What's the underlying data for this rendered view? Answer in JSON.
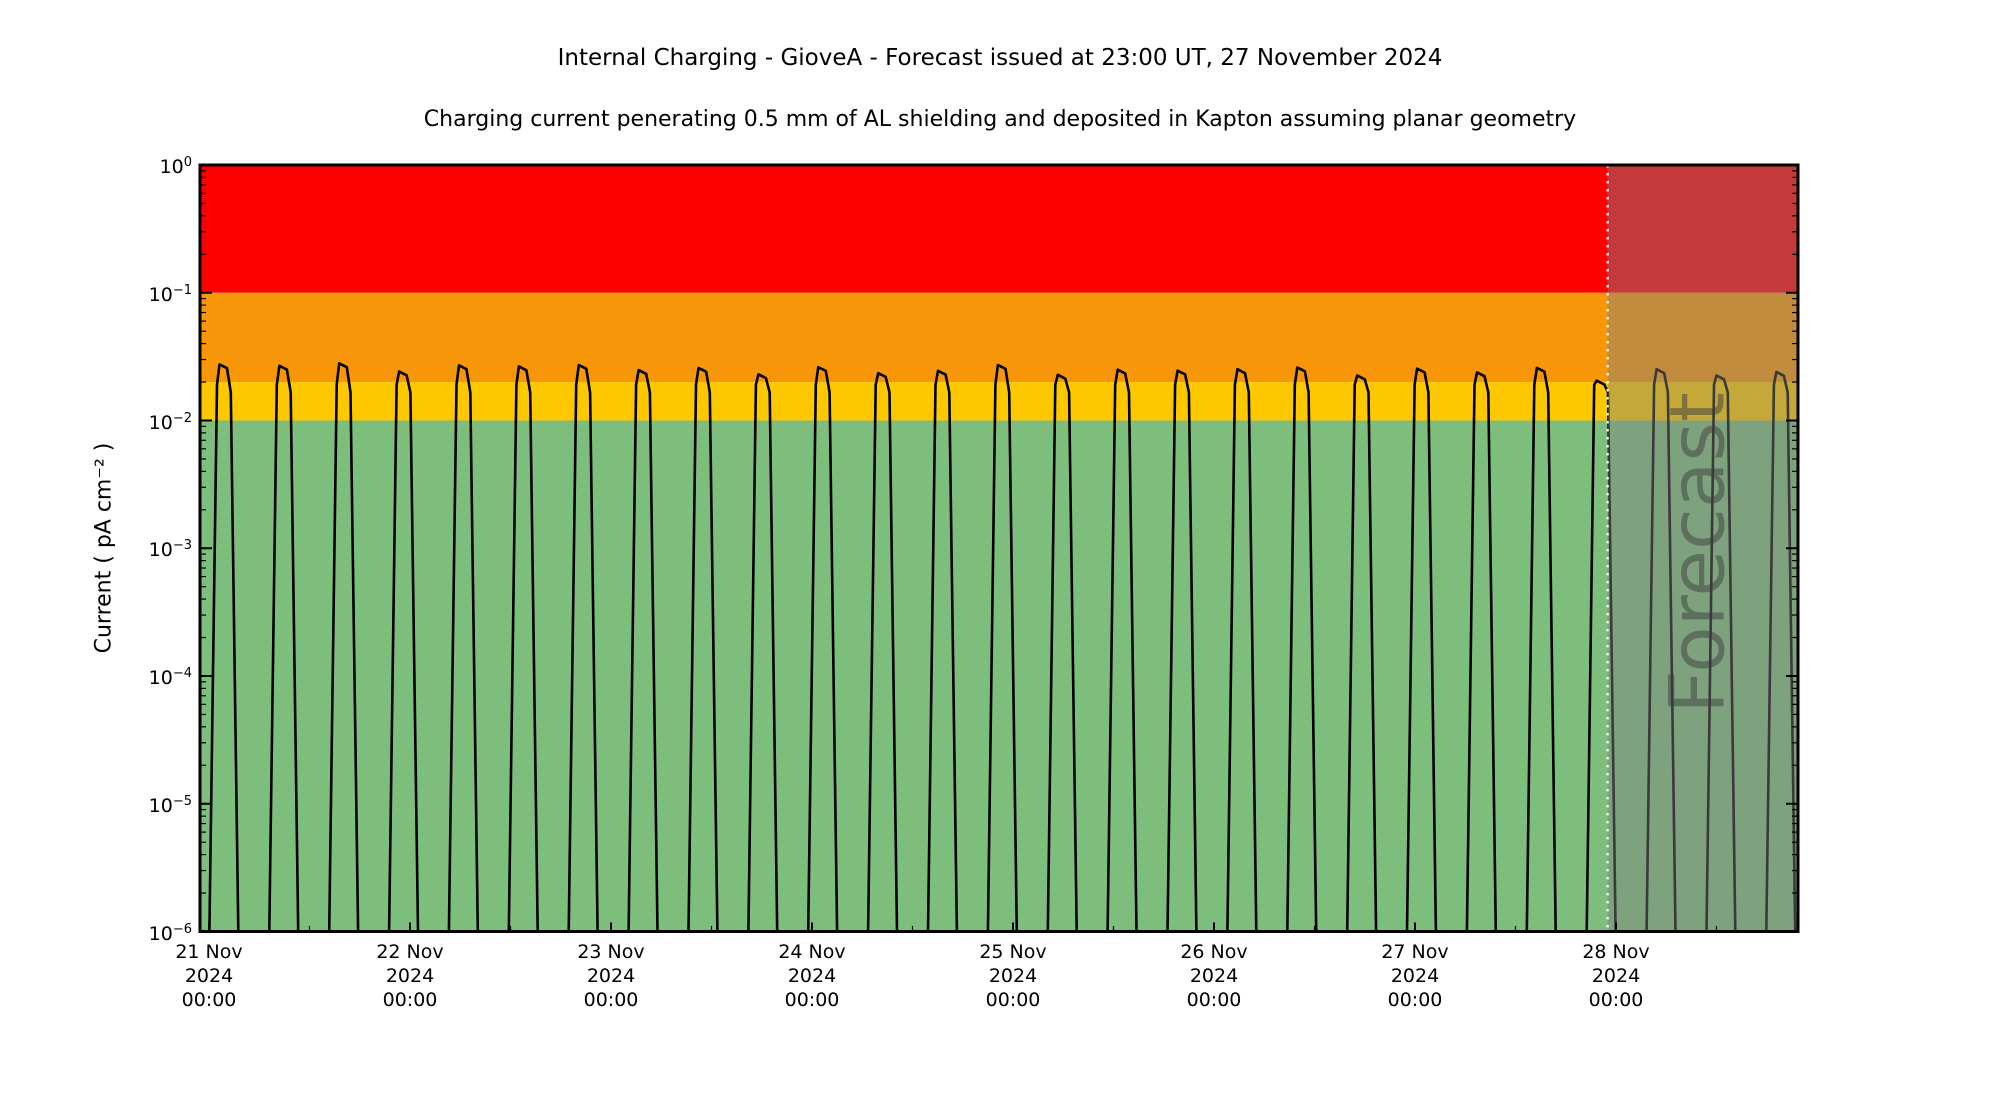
{
  "figure": {
    "title": "Internal Charging - GioveA - Forecast issued at 23:00 UT, 27 November 2024",
    "subtitle": "Charging current penerating 0.5 mm of AL shielding and deposited in Kapton assuming planar geometry"
  },
  "y_axis": {
    "label": "Current ( pA cm⁻² )",
    "base": "10",
    "tick_exponents": [
      "0",
      "−1",
      "−2",
      "−3",
      "−4",
      "−5",
      "−6"
    ]
  },
  "x_axis": {
    "tick_labels": [
      {
        "day": "21 Nov",
        "year": "2024",
        "time": "00:00"
      },
      {
        "day": "22 Nov",
        "year": "2024",
        "time": "00:00"
      },
      {
        "day": "23 Nov",
        "year": "2024",
        "time": "00:00"
      },
      {
        "day": "24 Nov",
        "year": "2024",
        "time": "00:00"
      },
      {
        "day": "25 Nov",
        "year": "2024",
        "time": "00:00"
      },
      {
        "day": "26 Nov",
        "year": "2024",
        "time": "00:00"
      },
      {
        "day": "27 Nov",
        "year": "2024",
        "time": "00:00"
      },
      {
        "day": "28 Nov",
        "year": "2024",
        "time": "00:00"
      }
    ]
  },
  "thresholds": {
    "bands": [
      {
        "name": "red-alert",
        "from": 0.1,
        "to": 1.0,
        "color": "#fd0000"
      },
      {
        "name": "orange-alert",
        "from": 0.02,
        "to": 0.1,
        "color": "#f8960a"
      },
      {
        "name": "yellow-alert",
        "from": 0.01,
        "to": 0.02,
        "color": "#fdc800"
      },
      {
        "name": "green-quiet",
        "from": 1e-06,
        "to": 0.01,
        "color": "#7dbe7d"
      }
    ]
  },
  "forecast": {
    "watermark": "Forecast",
    "issue_time_hours_after_start": 167,
    "line_color": "#ffffff",
    "overlay_color": "rgba(128,128,128,0.45)",
    "watermark_color": "rgba(60,60,60,0.5)"
  },
  "chart_data": {
    "type": "line",
    "title": "Internal Charging - GioveA - Forecast issued at 23:00 UT, 27 November 2024",
    "xlabel": "",
    "ylabel": "Current ( pA cm⁻² )",
    "y_scale": "log",
    "ylim": [
      1e-06,
      1
    ],
    "x_start_label": "21 Nov 2024 00:00",
    "x_hours_range": [
      -1.1,
      189.7
    ],
    "grid": false,
    "legend": false,
    "threshold_levels": {
      "yellow": 0.01,
      "orange": 0.02,
      "red": 0.1
    },
    "series": [
      {
        "name": "charging-current",
        "color": "#000000",
        "peak_period_hours": 7.15,
        "peaks_t_hours_and_value": [
          [
            1.8,
            0.0275
          ],
          [
            8.95,
            0.0268
          ],
          [
            16.1,
            0.028
          ],
          [
            23.25,
            0.0242
          ],
          [
            30.4,
            0.027
          ],
          [
            37.55,
            0.0265
          ],
          [
            44.7,
            0.0272
          ],
          [
            51.85,
            0.0248
          ],
          [
            59.0,
            0.0258
          ],
          [
            66.15,
            0.023
          ],
          [
            73.3,
            0.0262
          ],
          [
            80.45,
            0.0235
          ],
          [
            87.6,
            0.0245
          ],
          [
            94.75,
            0.0272
          ],
          [
            101.9,
            0.0228
          ],
          [
            109.05,
            0.025
          ],
          [
            116.2,
            0.0246
          ],
          [
            123.35,
            0.0252
          ],
          [
            130.5,
            0.026
          ],
          [
            137.65,
            0.0225
          ],
          [
            144.8,
            0.0255
          ],
          [
            151.95,
            0.0238
          ],
          [
            159.1,
            0.0258
          ],
          [
            166.25,
            0.0205
          ],
          [
            173.4,
            0.0252
          ],
          [
            180.55,
            0.0225
          ],
          [
            187.7,
            0.024
          ]
        ],
        "spike_profile": [
          {
            "dt": -3.3,
            "abs": -7.0
          },
          {
            "dt": -1.75,
            "abs": -6.0
          },
          {
            "dt": -0.85,
            "abs": -1.72
          },
          {
            "dt": -0.55,
            "rel": 0.0
          },
          {
            "dt": 0.35,
            "rel": -0.03
          },
          {
            "dt": 0.8,
            "abs": -1.78
          },
          {
            "dt": 1.7,
            "abs": -6.0
          },
          {
            "dt": 3.2,
            "abs": -7.0
          }
        ]
      }
    ]
  }
}
